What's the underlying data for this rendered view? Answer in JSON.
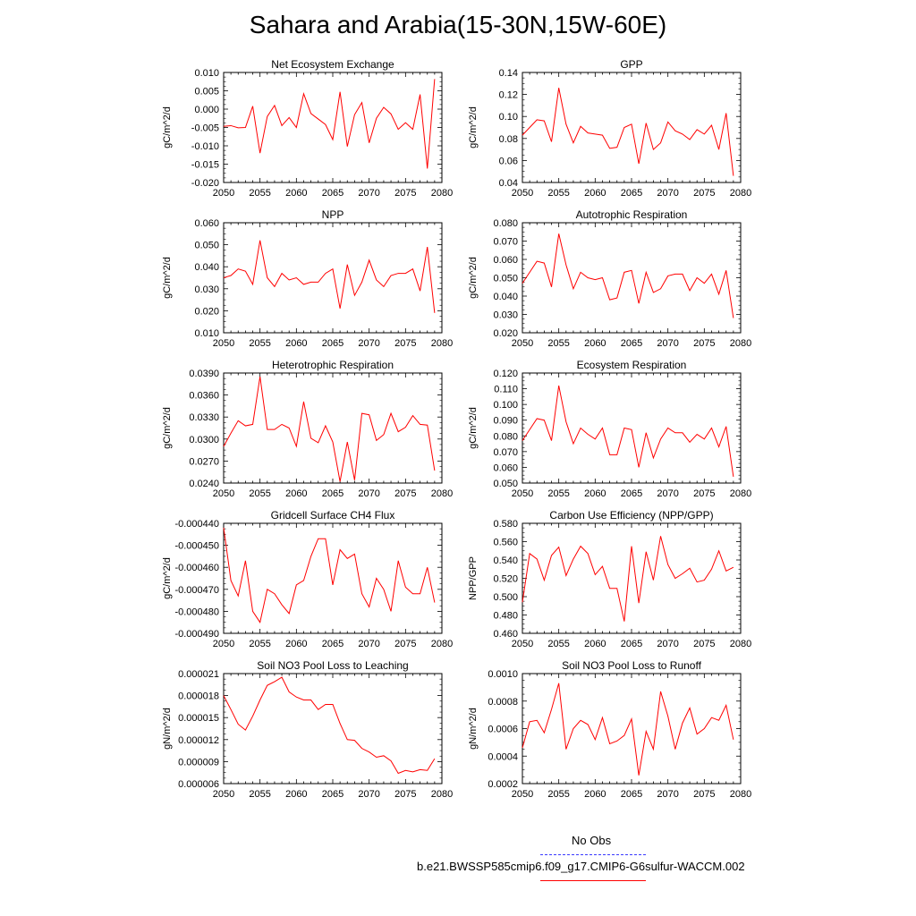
{
  "title": "Sahara and Arabia(15-30N,15W-60E)",
  "legend": [
    {
      "label": "No Obs",
      "color": "#3a3aff",
      "style": "dashed"
    },
    {
      "label": "b.e21.BWSSP585cmip6.f09_g17.CMIP6-G6sulfur-WACCM.002",
      "color": "#ff0000",
      "style": "solid"
    }
  ],
  "chart_data": [
    {
      "type": "line",
      "title": "Net Ecosystem Exchange",
      "xlabel": "",
      "ylabel": "gC/m^2/d",
      "xlim": [
        2050,
        2080
      ],
      "ylim": [
        -0.02,
        0.01
      ],
      "xticks": [
        "2050",
        "2055",
        "2060",
        "2065",
        "2070",
        "2075",
        "2080"
      ],
      "yticks": [
        "-0.020",
        "-0.015",
        "-0.010",
        "-0.005",
        "0.000",
        "0.005",
        "0.010"
      ],
      "series": [
        {
          "color": "#ff0000",
          "x": [
            2050,
            2051,
            2052,
            2053,
            2054,
            2055,
            2056,
            2057,
            2058,
            2059,
            2060,
            2061,
            2062,
            2063,
            2064,
            2065,
            2066,
            2067,
            2068,
            2069,
            2070,
            2071,
            2072,
            2073,
            2074,
            2075,
            2076,
            2077,
            2078,
            2079
          ],
          "y": [
            -0.0047,
            -0.0045,
            -0.0051,
            -0.005,
            0.0008,
            -0.012,
            -0.002,
            0.001,
            -0.0045,
            -0.0023,
            -0.005,
            0.0042,
            -0.0012,
            -0.0027,
            -0.0042,
            -0.0083,
            0.0047,
            -0.0102,
            -0.0015,
            0.0018,
            -0.0092,
            -0.0025,
            0.0005,
            -0.0013,
            -0.0055,
            -0.0037,
            -0.0055,
            0.004,
            -0.0162,
            0.0082
          ]
        }
      ]
    },
    {
      "type": "line",
      "title": "GPP",
      "xlabel": "",
      "ylabel": "gC/m^2/d",
      "xlim": [
        2050,
        2080
      ],
      "ylim": [
        0.04,
        0.14
      ],
      "xticks": [
        "2050",
        "2055",
        "2060",
        "2065",
        "2070",
        "2075",
        "2080"
      ],
      "yticks": [
        "0.04",
        "0.06",
        "0.08",
        "0.10",
        "0.12",
        "0.14"
      ],
      "series": [
        {
          "color": "#ff0000",
          "x": [
            2050,
            2051,
            2052,
            2053,
            2054,
            2055,
            2056,
            2057,
            2058,
            2059,
            2060,
            2061,
            2062,
            2063,
            2064,
            2065,
            2066,
            2067,
            2068,
            2069,
            2070,
            2071,
            2072,
            2073,
            2074,
            2075,
            2076,
            2077,
            2078,
            2079
          ],
          "y": [
            0.083,
            0.09,
            0.097,
            0.096,
            0.077,
            0.126,
            0.093,
            0.076,
            0.091,
            0.085,
            0.084,
            0.083,
            0.071,
            0.072,
            0.09,
            0.093,
            0.057,
            0.094,
            0.07,
            0.076,
            0.095,
            0.087,
            0.084,
            0.079,
            0.088,
            0.084,
            0.092,
            0.07,
            0.103,
            0.046
          ]
        }
      ]
    },
    {
      "type": "line",
      "title": "NPP",
      "xlabel": "",
      "ylabel": "gC/m^2/d",
      "xlim": [
        2050,
        2080
      ],
      "ylim": [
        0.01,
        0.06
      ],
      "xticks": [
        "2050",
        "2055",
        "2060",
        "2065",
        "2070",
        "2075",
        "2080"
      ],
      "yticks": [
        "0.010",
        "0.020",
        "0.030",
        "0.040",
        "0.050",
        "0.060"
      ],
      "series": [
        {
          "color": "#ff0000",
          "x": [
            2050,
            2051,
            2052,
            2053,
            2054,
            2055,
            2056,
            2057,
            2058,
            2059,
            2060,
            2061,
            2062,
            2063,
            2064,
            2065,
            2066,
            2067,
            2068,
            2069,
            2070,
            2071,
            2072,
            2073,
            2074,
            2075,
            2076,
            2077,
            2078,
            2079
          ],
          "y": [
            0.035,
            0.036,
            0.039,
            0.038,
            0.032,
            0.052,
            0.035,
            0.031,
            0.037,
            0.034,
            0.035,
            0.032,
            0.033,
            0.033,
            0.037,
            0.039,
            0.021,
            0.041,
            0.027,
            0.033,
            0.043,
            0.034,
            0.031,
            0.036,
            0.037,
            0.037,
            0.039,
            0.029,
            0.049,
            0.019
          ]
        }
      ]
    },
    {
      "type": "line",
      "title": "Autotrophic Respiration",
      "xlabel": "",
      "ylabel": "gC/m^2/d",
      "xlim": [
        2050,
        2080
      ],
      "ylim": [
        0.02,
        0.08
      ],
      "xticks": [
        "2050",
        "2055",
        "2060",
        "2065",
        "2070",
        "2075",
        "2080"
      ],
      "yticks": [
        "0.020",
        "0.030",
        "0.040",
        "0.050",
        "0.060",
        "0.070",
        "0.080"
      ],
      "series": [
        {
          "color": "#ff0000",
          "x": [
            2050,
            2051,
            2052,
            2053,
            2054,
            2055,
            2056,
            2057,
            2058,
            2059,
            2060,
            2061,
            2062,
            2063,
            2064,
            2065,
            2066,
            2067,
            2068,
            2069,
            2070,
            2071,
            2072,
            2073,
            2074,
            2075,
            2076,
            2077,
            2078,
            2079
          ],
          "y": [
            0.047,
            0.053,
            0.059,
            0.058,
            0.045,
            0.074,
            0.057,
            0.044,
            0.053,
            0.05,
            0.049,
            0.05,
            0.038,
            0.039,
            0.053,
            0.054,
            0.036,
            0.053,
            0.042,
            0.044,
            0.051,
            0.052,
            0.052,
            0.043,
            0.05,
            0.047,
            0.052,
            0.041,
            0.054,
            0.028
          ]
        }
      ]
    },
    {
      "type": "line",
      "title": "Heterotrophic Respiration",
      "xlabel": "",
      "ylabel": "gC/m^2/d",
      "xlim": [
        2050,
        2080
      ],
      "ylim": [
        0.024,
        0.039
      ],
      "xticks": [
        "2050",
        "2055",
        "2060",
        "2065",
        "2070",
        "2075",
        "2080"
      ],
      "yticks": [
        "0.0240",
        "0.0270",
        "0.0300",
        "0.0330",
        "0.0360",
        "0.0390"
      ],
      "series": [
        {
          "color": "#ff0000",
          "x": [
            2050,
            2051,
            2052,
            2053,
            2054,
            2055,
            2056,
            2057,
            2058,
            2059,
            2060,
            2061,
            2062,
            2063,
            2064,
            2065,
            2066,
            2067,
            2068,
            2069,
            2070,
            2071,
            2072,
            2073,
            2074,
            2075,
            2076,
            2077,
            2078,
            2079
          ],
          "y": [
            0.029,
            0.0308,
            0.0325,
            0.0318,
            0.032,
            0.0385,
            0.0313,
            0.0313,
            0.032,
            0.0315,
            0.029,
            0.0351,
            0.0301,
            0.0295,
            0.0318,
            0.0296,
            0.0242,
            0.0296,
            0.0244,
            0.0335,
            0.0333,
            0.0298,
            0.0306,
            0.0335,
            0.031,
            0.0316,
            0.0332,
            0.032,
            0.0319,
            0.0257
          ]
        }
      ]
    },
    {
      "type": "line",
      "title": "Ecosystem Respiration",
      "xlabel": "",
      "ylabel": "gC/m^2/d",
      "xlim": [
        2050,
        2080
      ],
      "ylim": [
        0.05,
        0.12
      ],
      "xticks": [
        "2050",
        "2055",
        "2060",
        "2065",
        "2070",
        "2075",
        "2080"
      ],
      "yticks": [
        "0.050",
        "0.060",
        "0.070",
        "0.080",
        "0.090",
        "0.100",
        "0.110",
        "0.120"
      ],
      "series": [
        {
          "color": "#ff0000",
          "x": [
            2050,
            2051,
            2052,
            2053,
            2054,
            2055,
            2056,
            2057,
            2058,
            2059,
            2060,
            2061,
            2062,
            2063,
            2064,
            2065,
            2066,
            2067,
            2068,
            2069,
            2070,
            2071,
            2072,
            2073,
            2074,
            2075,
            2076,
            2077,
            2078,
            2079
          ],
          "y": [
            0.077,
            0.084,
            0.091,
            0.09,
            0.077,
            0.112,
            0.089,
            0.075,
            0.085,
            0.081,
            0.078,
            0.085,
            0.068,
            0.068,
            0.085,
            0.084,
            0.06,
            0.082,
            0.066,
            0.078,
            0.085,
            0.082,
            0.082,
            0.076,
            0.081,
            0.078,
            0.085,
            0.073,
            0.086,
            0.054
          ]
        }
      ]
    },
    {
      "type": "line",
      "title": "Gridcell Surface CH4 Flux",
      "xlabel": "",
      "ylabel": "gC/m^2/d",
      "xlim": [
        2050,
        2080
      ],
      "ylim": [
        -0.00049,
        -0.00044
      ],
      "xticks": [
        "2050",
        "2055",
        "2060",
        "2065",
        "2070",
        "2075",
        "2080"
      ],
      "yticks": [
        "-0.000490",
        "-0.000480",
        "-0.000470",
        "-0.000460",
        "-0.000450",
        "-0.000440"
      ],
      "series": [
        {
          "color": "#ff0000",
          "x": [
            2050,
            2051,
            2052,
            2053,
            2054,
            2055,
            2056,
            2057,
            2058,
            2059,
            2060,
            2061,
            2062,
            2063,
            2064,
            2065,
            2066,
            2067,
            2068,
            2069,
            2070,
            2071,
            2072,
            2073,
            2074,
            2075,
            2076,
            2077,
            2078,
            2079
          ],
          "y": [
            -0.000442,
            -0.000466,
            -0.000473,
            -0.000457,
            -0.00048,
            -0.000485,
            -0.00047,
            -0.000472,
            -0.000477,
            -0.000481,
            -0.000468,
            -0.000466,
            -0.000455,
            -0.000447,
            -0.000447,
            -0.000468,
            -0.000452,
            -0.000456,
            -0.000454,
            -0.000472,
            -0.000478,
            -0.000465,
            -0.00047,
            -0.00048,
            -0.000457,
            -0.000469,
            -0.000472,
            -0.000472,
            -0.00046,
            -0.000476
          ]
        }
      ]
    },
    {
      "type": "line",
      "title": "Carbon Use Efficiency (NPP/GPP)",
      "xlabel": "",
      "ylabel": "NPP/GPP",
      "xlim": [
        2050,
        2080
      ],
      "ylim": [
        0.46,
        0.58
      ],
      "xticks": [
        "2050",
        "2055",
        "2060",
        "2065",
        "2070",
        "2075",
        "2080"
      ],
      "yticks": [
        "0.460",
        "0.480",
        "0.500",
        "0.520",
        "0.540",
        "0.560",
        "0.580"
      ],
      "series": [
        {
          "color": "#ff0000",
          "x": [
            2050,
            2051,
            2052,
            2053,
            2054,
            2055,
            2056,
            2057,
            2058,
            2059,
            2060,
            2061,
            2062,
            2063,
            2064,
            2065,
            2066,
            2067,
            2068,
            2069,
            2070,
            2071,
            2072,
            2073,
            2074,
            2075,
            2076,
            2077,
            2078,
            2079
          ],
          "y": [
            0.494,
            0.547,
            0.541,
            0.518,
            0.545,
            0.554,
            0.523,
            0.541,
            0.555,
            0.547,
            0.524,
            0.533,
            0.509,
            0.509,
            0.473,
            0.555,
            0.493,
            0.549,
            0.518,
            0.566,
            0.535,
            0.52,
            0.525,
            0.531,
            0.516,
            0.518,
            0.53,
            0.55,
            0.528,
            0.532
          ]
        }
      ]
    },
    {
      "type": "line",
      "title": "Soil NO3 Pool Loss to Leaching",
      "xlabel": "",
      "ylabel": "gN/m^2/d",
      "xlim": [
        2050,
        2080
      ],
      "ylim": [
        6e-06,
        2.1e-05
      ],
      "xticks": [
        "2050",
        "2055",
        "2060",
        "2065",
        "2070",
        "2075",
        "2080"
      ],
      "yticks": [
        "0.000006",
        "0.000009",
        "0.000012",
        "0.000015",
        "0.000018",
        "0.000021"
      ],
      "series": [
        {
          "color": "#ff0000",
          "x": [
            2050,
            2051,
            2052,
            2053,
            2054,
            2055,
            2056,
            2057,
            2058,
            2059,
            2060,
            2061,
            2062,
            2063,
            2064,
            2065,
            2066,
            2067,
            2068,
            2069,
            2070,
            2071,
            2072,
            2073,
            2074,
            2075,
            2076,
            2077,
            2078,
            2079
          ],
          "y": [
            1.8e-05,
            1.61e-05,
            1.41e-05,
            1.33e-05,
            1.52e-05,
            1.74e-05,
            1.94e-05,
            1.99e-05,
            2.05e-05,
            1.85e-05,
            1.78e-05,
            1.74e-05,
            1.74e-05,
            1.61e-05,
            1.68e-05,
            1.68e-05,
            1.42e-05,
            1.2e-05,
            1.19e-05,
            1.08e-05,
            1.03e-05,
            9.6e-06,
            9.8e-06,
            9.1e-06,
            7.4e-06,
            7.8e-06,
            7.6e-06,
            7.9e-06,
            7.8e-06,
            9.4e-06
          ]
        }
      ]
    },
    {
      "type": "line",
      "title": "Soil NO3 Pool Loss to Runoff",
      "xlabel": "",
      "ylabel": "gN/m^2/d",
      "xlim": [
        2050,
        2080
      ],
      "ylim": [
        0.0002,
        0.001
      ],
      "xticks": [
        "2050",
        "2055",
        "2060",
        "2065",
        "2070",
        "2075",
        "2080"
      ],
      "yticks": [
        "0.0002",
        "0.0004",
        "0.0006",
        "0.0008",
        "0.0010"
      ],
      "series": [
        {
          "color": "#ff0000",
          "x": [
            2050,
            2051,
            2052,
            2053,
            2054,
            2055,
            2056,
            2057,
            2058,
            2059,
            2060,
            2061,
            2062,
            2063,
            2064,
            2065,
            2066,
            2067,
            2068,
            2069,
            2070,
            2071,
            2072,
            2073,
            2074,
            2075,
            2076,
            2077,
            2078,
            2079
          ],
          "y": [
            0.00046,
            0.00065,
            0.00066,
            0.00057,
            0.00074,
            0.00093,
            0.00045,
            0.0006,
            0.00066,
            0.00063,
            0.00052,
            0.00068,
            0.00049,
            0.00051,
            0.00055,
            0.00067,
            0.00026,
            0.00058,
            0.00045,
            0.00087,
            0.00069,
            0.00045,
            0.00064,
            0.00075,
            0.00056,
            0.0006,
            0.00068,
            0.00066,
            0.00077,
            0.00052
          ]
        }
      ]
    }
  ]
}
